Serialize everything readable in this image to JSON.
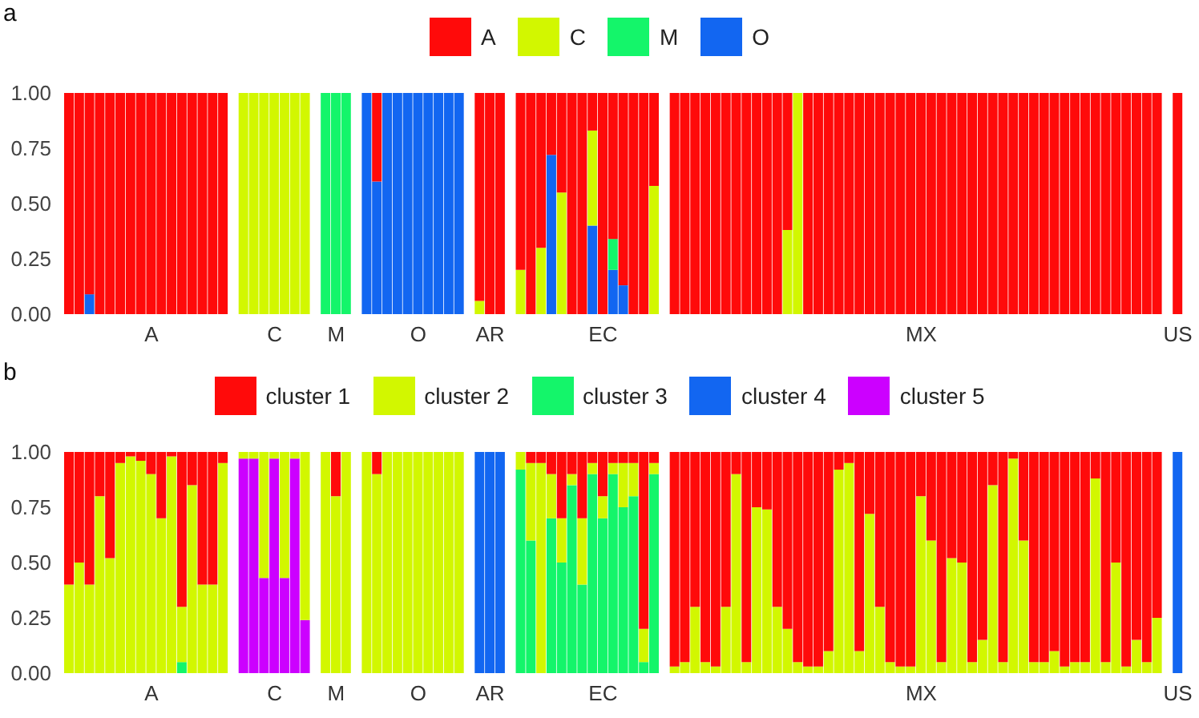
{
  "chart_data": [
    {
      "type": "bar",
      "title": "a",
      "stacked": true,
      "legend": "top",
      "ylim": [
        0,
        1
      ],
      "yticks": [
        {
          "value": 0,
          "label": "0.00"
        },
        {
          "value": 0.25,
          "label": "0.25"
        },
        {
          "value": 0.5,
          "label": "0.50"
        },
        {
          "value": 0.75,
          "label": "0.75"
        },
        {
          "value": 1,
          "label": "1.00"
        }
      ],
      "categories": [
        null,
        null,
        null,
        null,
        null,
        null,
        null,
        null,
        "A",
        null,
        null,
        null,
        null,
        null,
        null,
        null,
        null,
        null,
        null,
        null,
        "C",
        null,
        null,
        null,
        null,
        null,
        "M",
        null,
        null,
        null,
        null,
        null,
        null,
        null,
        "O",
        null,
        null,
        null,
        null,
        null,
        null,
        "AR",
        null,
        null,
        null,
        null,
        null,
        null,
        null,
        null,
        null,
        null,
        "EC",
        null,
        null,
        null,
        null,
        null,
        null,
        null,
        null,
        null,
        null,
        null,
        null,
        null,
        null,
        null,
        null,
        null,
        null,
        null,
        null,
        null,
        null,
        null,
        null,
        null,
        null,
        null,
        null,
        null,
        null,
        "MX",
        null,
        null,
        null,
        null,
        null,
        null,
        null,
        null,
        null,
        null,
        null,
        null,
        null,
        null,
        null,
        null,
        null,
        null,
        null,
        null,
        null,
        null,
        null,
        null,
        "US"
      ],
      "series": [
        {
          "name": "O",
          "color": "#1266f1",
          "values": [
            0,
            0,
            0.09,
            0,
            0,
            0,
            0,
            0,
            0,
            0,
            0,
            0,
            0,
            0,
            0,
            0,
            null,
            0,
            0,
            0,
            0,
            0,
            0,
            0,
            null,
            0,
            0,
            0,
            null,
            1,
            0.6,
            1,
            1,
            1,
            1,
            1,
            1,
            1,
            1,
            null,
            0,
            0,
            0,
            null,
            0,
            0,
            0,
            0.72,
            0,
            0,
            0,
            0.4,
            0,
            0.2,
            0.13,
            0,
            0,
            0,
            null,
            0,
            0,
            0,
            0,
            0,
            0,
            0,
            0,
            0,
            0,
            0,
            0,
            0,
            0,
            0,
            0,
            0,
            0,
            0,
            0,
            0,
            0,
            0,
            0,
            0,
            0,
            0,
            0,
            0,
            0,
            0,
            0,
            0,
            0,
            0,
            0,
            0,
            0,
            0,
            0,
            0,
            0,
            0,
            0,
            0,
            0,
            0,
            0,
            null,
            0
          ]
        },
        {
          "name": "M",
          "color": "#14f56a",
          "values": [
            0,
            0,
            0,
            0,
            0,
            0,
            0,
            0,
            0,
            0,
            0,
            0,
            0,
            0,
            0,
            0,
            null,
            0,
            0,
            0,
            0,
            0,
            0,
            0,
            null,
            1,
            1,
            1,
            null,
            0,
            0,
            0,
            0,
            0,
            0,
            0,
            0,
            0,
            0,
            null,
            0,
            0,
            0,
            null,
            0,
            0,
            0,
            0,
            0,
            0,
            0,
            0,
            0,
            0.14,
            0,
            0,
            0,
            0,
            null,
            0,
            0,
            0,
            0,
            0,
            0,
            0,
            0,
            0,
            0,
            0,
            0,
            0,
            0,
            0,
            0,
            0,
            0,
            0,
            0,
            0,
            0,
            0,
            0,
            0,
            0,
            0,
            0,
            0,
            0,
            0,
            0,
            0,
            0,
            0,
            0,
            0,
            0,
            0,
            0,
            0,
            0,
            0,
            0,
            0,
            0,
            0,
            0,
            null,
            0
          ]
        },
        {
          "name": "C",
          "color": "#d2f700",
          "values": [
            0,
            0,
            0,
            0,
            0,
            0,
            0,
            0,
            0,
            0,
            0,
            0,
            0,
            0,
            0,
            0,
            null,
            1,
            1,
            1,
            1,
            1,
            1,
            1,
            null,
            0,
            0,
            0,
            null,
            0,
            0,
            0,
            0,
            0,
            0,
            0,
            0,
            0,
            0,
            null,
            0.06,
            0,
            0,
            null,
            0.2,
            0,
            0.3,
            0,
            0.55,
            0,
            0,
            0.43,
            0,
            0,
            0,
            0,
            0,
            0.58,
            null,
            0,
            0,
            0,
            0,
            0,
            0,
            0,
            0,
            0,
            0,
            0,
            0.38,
            1,
            0,
            0,
            0,
            0,
            0,
            0,
            0,
            0,
            0,
            0,
            0,
            0,
            0,
            0,
            0,
            0,
            0,
            0,
            0,
            0,
            0,
            0,
            0,
            0,
            0,
            0,
            0,
            0,
            0,
            0,
            0,
            0,
            0,
            0,
            0,
            null,
            0
          ]
        },
        {
          "name": "A",
          "color": "#ff0a0a",
          "values": [
            1,
            1,
            0.91,
            1,
            1,
            1,
            1,
            1,
            1,
            1,
            1,
            1,
            1,
            1,
            1,
            1,
            null,
            0,
            0,
            0,
            0,
            0,
            0,
            0,
            null,
            0,
            0,
            0,
            null,
            0,
            0.4,
            0,
            0,
            0,
            0,
            0,
            0,
            0,
            0,
            null,
            0.94,
            1,
            1,
            null,
            0.8,
            1,
            0.7,
            0.28,
            0.45,
            1,
            1,
            0.17,
            1,
            0.66,
            0.87,
            1,
            1,
            0.42,
            null,
            1,
            1,
            1,
            1,
            1,
            1,
            1,
            1,
            1,
            1,
            1,
            0.62,
            0,
            1,
            1,
            1,
            1,
            1,
            1,
            1,
            1,
            1,
            1,
            1,
            1,
            1,
            1,
            1,
            1,
            1,
            1,
            1,
            1,
            1,
            1,
            1,
            1,
            1,
            1,
            1,
            1,
            1,
            1,
            1,
            1,
            1,
            1,
            1,
            null,
            1
          ]
        }
      ]
    },
    {
      "type": "bar",
      "title": "b",
      "stacked": true,
      "legend": "top",
      "ylim": [
        0,
        1
      ],
      "yticks": [
        {
          "value": 0,
          "label": "0.00"
        },
        {
          "value": 0.25,
          "label": "0.25"
        },
        {
          "value": 0.5,
          "label": "0.50"
        },
        {
          "value": 0.75,
          "label": "0.75"
        },
        {
          "value": 1,
          "label": "1.00"
        }
      ],
      "categories": [
        null,
        null,
        null,
        null,
        null,
        null,
        null,
        null,
        "A",
        null,
        null,
        null,
        null,
        null,
        null,
        null,
        null,
        null,
        null,
        null,
        "C",
        null,
        null,
        null,
        null,
        null,
        "M",
        null,
        null,
        null,
        null,
        null,
        null,
        null,
        "O",
        null,
        null,
        null,
        null,
        null,
        null,
        "AR",
        null,
        null,
        null,
        null,
        null,
        null,
        null,
        null,
        null,
        null,
        "EC",
        null,
        null,
        null,
        null,
        null,
        null,
        null,
        null,
        null,
        null,
        null,
        null,
        null,
        null,
        null,
        null,
        null,
        null,
        null,
        null,
        null,
        null,
        null,
        null,
        null,
        null,
        null,
        null,
        null,
        null,
        "MX",
        null,
        null,
        null,
        null,
        null,
        null,
        null,
        null,
        null,
        null,
        null,
        null,
        null,
        null,
        null,
        null,
        null,
        null,
        null,
        null,
        null,
        null,
        null,
        null,
        "US"
      ],
      "series": [
        {
          "name": "cluster 5",
          "color": "#cc00ff",
          "values": [
            0,
            0,
            0,
            0,
            0,
            0,
            0,
            0,
            0,
            0,
            0,
            0,
            0,
            0,
            0,
            0,
            null,
            0.97,
            0.97,
            0.43,
            0.97,
            0.43,
            0.97,
            0.24,
            null,
            0,
            0,
            0,
            null,
            0,
            0,
            0,
            0,
            0,
            0,
            0,
            0,
            0,
            0,
            null,
            0,
            0,
            0,
            null,
            0,
            0,
            0,
            0,
            0,
            0,
            0,
            0,
            0,
            0,
            0,
            0,
            0,
            0,
            null,
            0,
            0,
            0,
            0,
            0,
            0,
            0,
            0,
            0,
            0,
            0,
            0,
            0,
            0,
            0,
            0,
            0,
            0,
            0,
            0,
            0,
            0,
            0,
            0,
            0,
            0,
            0,
            0,
            0,
            0,
            0,
            0,
            0,
            0,
            0,
            0,
            0,
            0,
            0,
            0,
            0,
            0,
            0,
            0,
            0,
            0,
            0,
            0,
            null,
            0
          ]
        },
        {
          "name": "cluster 4",
          "color": "#1266f1",
          "values": [
            0,
            0,
            0,
            0,
            0,
            0,
            0,
            0,
            0,
            0,
            0,
            0,
            0,
            0,
            0,
            0,
            null,
            0,
            0,
            0,
            0,
            0,
            0,
            0,
            null,
            0,
            0,
            0,
            null,
            0,
            0,
            0,
            0,
            0,
            0,
            0,
            0,
            0,
            0,
            null,
            1,
            1,
            1,
            null,
            0,
            0,
            0,
            0,
            0,
            0,
            0,
            0,
            0,
            0,
            0,
            0,
            0,
            0,
            null,
            0,
            0,
            0,
            0,
            0,
            0,
            0,
            0,
            0,
            0,
            0,
            0,
            0,
            0,
            0,
            0,
            0,
            0,
            0,
            0,
            0,
            0,
            0,
            0,
            0,
            0,
            0,
            0,
            0,
            0,
            0,
            0,
            0,
            0,
            0,
            0,
            0,
            0,
            0,
            0,
            0,
            0,
            0,
            0,
            0,
            0,
            0,
            0,
            null,
            1
          ]
        },
        {
          "name": "cluster 3",
          "color": "#14f56a",
          "values": [
            0,
            0,
            0,
            0,
            0,
            0,
            0,
            0,
            0,
            0,
            0,
            0.05,
            0,
            0,
            0,
            0,
            null,
            0,
            0,
            0,
            0,
            0,
            0,
            0,
            null,
            0,
            0,
            0,
            null,
            0,
            0,
            0,
            0,
            0,
            0,
            0,
            0,
            0,
            0,
            null,
            0,
            0,
            0,
            null,
            0.92,
            0.6,
            0,
            0.7,
            0.5,
            0.85,
            0.4,
            0.9,
            0.7,
            0.9,
            0.75,
            0.8,
            0.05,
            0.9,
            null,
            0,
            0,
            0,
            0,
            0,
            0,
            0,
            0,
            0,
            0,
            0,
            0,
            0,
            0,
            0,
            0,
            0,
            0,
            0,
            0,
            0,
            0,
            0,
            0,
            0,
            0,
            0,
            0,
            0,
            0,
            0,
            0,
            0,
            0,
            0,
            0,
            0,
            0,
            0,
            0,
            0,
            0,
            0,
            0,
            0,
            0,
            0,
            0,
            null,
            0
          ]
        },
        {
          "name": "cluster 2",
          "color": "#d2f700",
          "values": [
            0.4,
            0.5,
            0.4,
            0.8,
            0.52,
            0.95,
            0.98,
            0.96,
            0.9,
            0.7,
            0.98,
            0.25,
            0.85,
            0.4,
            0.4,
            0.95,
            null,
            0.03,
            0.03,
            0.57,
            0.03,
            0.57,
            0.03,
            0.76,
            null,
            1,
            0.8,
            1,
            null,
            1,
            0.9,
            1,
            1,
            1,
            1,
            1,
            1,
            1,
            1,
            null,
            0,
            0,
            0,
            null,
            0.08,
            0.35,
            0.95,
            0.2,
            0.2,
            0.05,
            0.3,
            0.05,
            0.1,
            0.05,
            0.2,
            0.15,
            0.15,
            0.05,
            null,
            0.03,
            0.05,
            0.3,
            0.05,
            0.03,
            0.3,
            0.9,
            0.05,
            0.75,
            0.74,
            0.3,
            0.2,
            0.05,
            0.03,
            0.03,
            0.1,
            0.92,
            0.95,
            0.1,
            0.72,
            0.3,
            0.05,
            0.03,
            0.03,
            0.8,
            0.6,
            0.05,
            0.52,
            0.5,
            0.05,
            0.15,
            0.85,
            0.05,
            0.97,
            0.6,
            0.05,
            0.05,
            0.1,
            0.03,
            0.05,
            0.05,
            0.88,
            0.05,
            0.5,
            0.03,
            0.15,
            0.05,
            0.25,
            null,
            0
          ]
        },
        {
          "name": "cluster 1",
          "color": "#ff0a0a",
          "values": [
            0.6,
            0.5,
            0.6,
            0.2,
            0.48,
            0.05,
            0.02,
            0.04,
            0.1,
            0.3,
            0.02,
            0.7,
            0.15,
            0.6,
            0.6,
            0.05,
            null,
            0,
            0,
            0,
            0,
            0,
            0,
            0,
            null,
            0,
            0.2,
            0,
            null,
            0,
            0.1,
            0,
            0,
            0,
            0,
            0,
            0,
            0,
            0,
            null,
            0,
            0,
            0,
            null,
            0,
            0.05,
            0.05,
            0.1,
            0.3,
            0.1,
            0.3,
            0.05,
            0.2,
            0.05,
            0.05,
            0.05,
            0.8,
            0.05,
            null,
            0.97,
            0.95,
            0.7,
            0.95,
            0.97,
            0.7,
            0.1,
            0.95,
            0.25,
            0.26,
            0.7,
            0.8,
            0.95,
            0.97,
            0.97,
            0.9,
            0.08,
            0.05,
            0.9,
            0.28,
            0.7,
            0.95,
            0.97,
            0.97,
            0.2,
            0.4,
            0.95,
            0.48,
            0.5,
            0.95,
            0.85,
            0.15,
            0.95,
            0.03,
            0.4,
            0.95,
            0.95,
            0.9,
            0.97,
            0.95,
            0.95,
            0.12,
            0.95,
            0.5,
            0.97,
            0.85,
            0.95,
            0.75,
            null,
            0
          ]
        }
      ]
    }
  ]
}
